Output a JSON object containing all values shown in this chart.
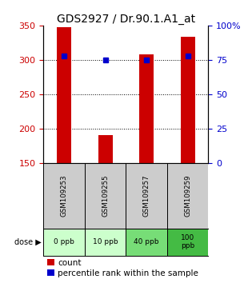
{
  "title": "GDS2927 / Dr.90.1.A1_at",
  "samples": [
    "GSM109253",
    "GSM109255",
    "GSM109257",
    "GSM109259"
  ],
  "doses": [
    "0 ppb",
    "10 ppb",
    "40 ppb",
    "100\nppb"
  ],
  "counts": [
    348,
    191,
    308,
    334
  ],
  "percentile_ranks": [
    78,
    75,
    75,
    78
  ],
  "y_min": 150,
  "y_max": 350,
  "y_ticks": [
    150,
    200,
    250,
    300,
    350
  ],
  "y2_ticks": [
    0,
    25,
    50,
    75,
    100
  ],
  "y2_labels": [
    "0",
    "25",
    "50",
    "75",
    "100%"
  ],
  "bar_color": "#cc0000",
  "pct_color": "#0000cc",
  "dose_bg_colors": [
    "#ccffcc",
    "#ccffcc",
    "#77dd77",
    "#44bb44"
  ],
  "sample_bg_color": "#cccccc",
  "grid_color": "#000000",
  "title_fontsize": 10,
  "tick_fontsize": 8,
  "legend_fontsize": 7.5,
  "bar_width": 0.35
}
